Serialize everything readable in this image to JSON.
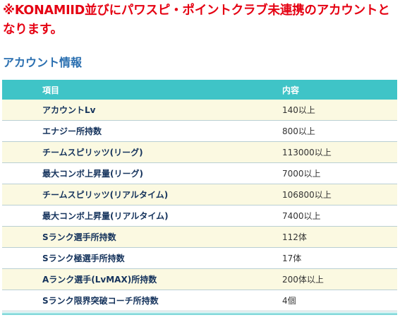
{
  "notice": {
    "text": "※KONAMIID並びにパワスピ・ポイントクラブ未連携のアカウントとなります。"
  },
  "account_info": {
    "title": "アカウント情報",
    "columns": [
      "項目",
      "内容"
    ],
    "rows": [
      {
        "item": "アカウントLv",
        "value": "140以上"
      },
      {
        "item": "エナジー所持数",
        "value": "800以上"
      },
      {
        "item": "チームスピリッツ(リーグ)",
        "value": "113000以上"
      },
      {
        "item": "最大コンボ上昇量(リーグ)",
        "value": "7000以上"
      },
      {
        "item": "チームスピリッツ(リアルタイム)",
        "value": "106800以上"
      },
      {
        "item": "最大コンボ上昇量(リアルタイム)",
        "value": "7400以上"
      },
      {
        "item": "Sランク選手所持数",
        "value": "112体"
      },
      {
        "item": "Sランク極選手所持数",
        "value": "17体"
      },
      {
        "item": "Aランク選手(LvMAX)所持数",
        "value": "200体以上"
      },
      {
        "item": "Sランク限界突破コーチ所持数",
        "value": "4個"
      }
    ]
  },
  "colors": {
    "notice": "#e50012",
    "section_title": "#2a6fb0",
    "table_header": "#3fc4c7",
    "row_alt": "#fbf9e1",
    "item_text": "#15335c"
  }
}
